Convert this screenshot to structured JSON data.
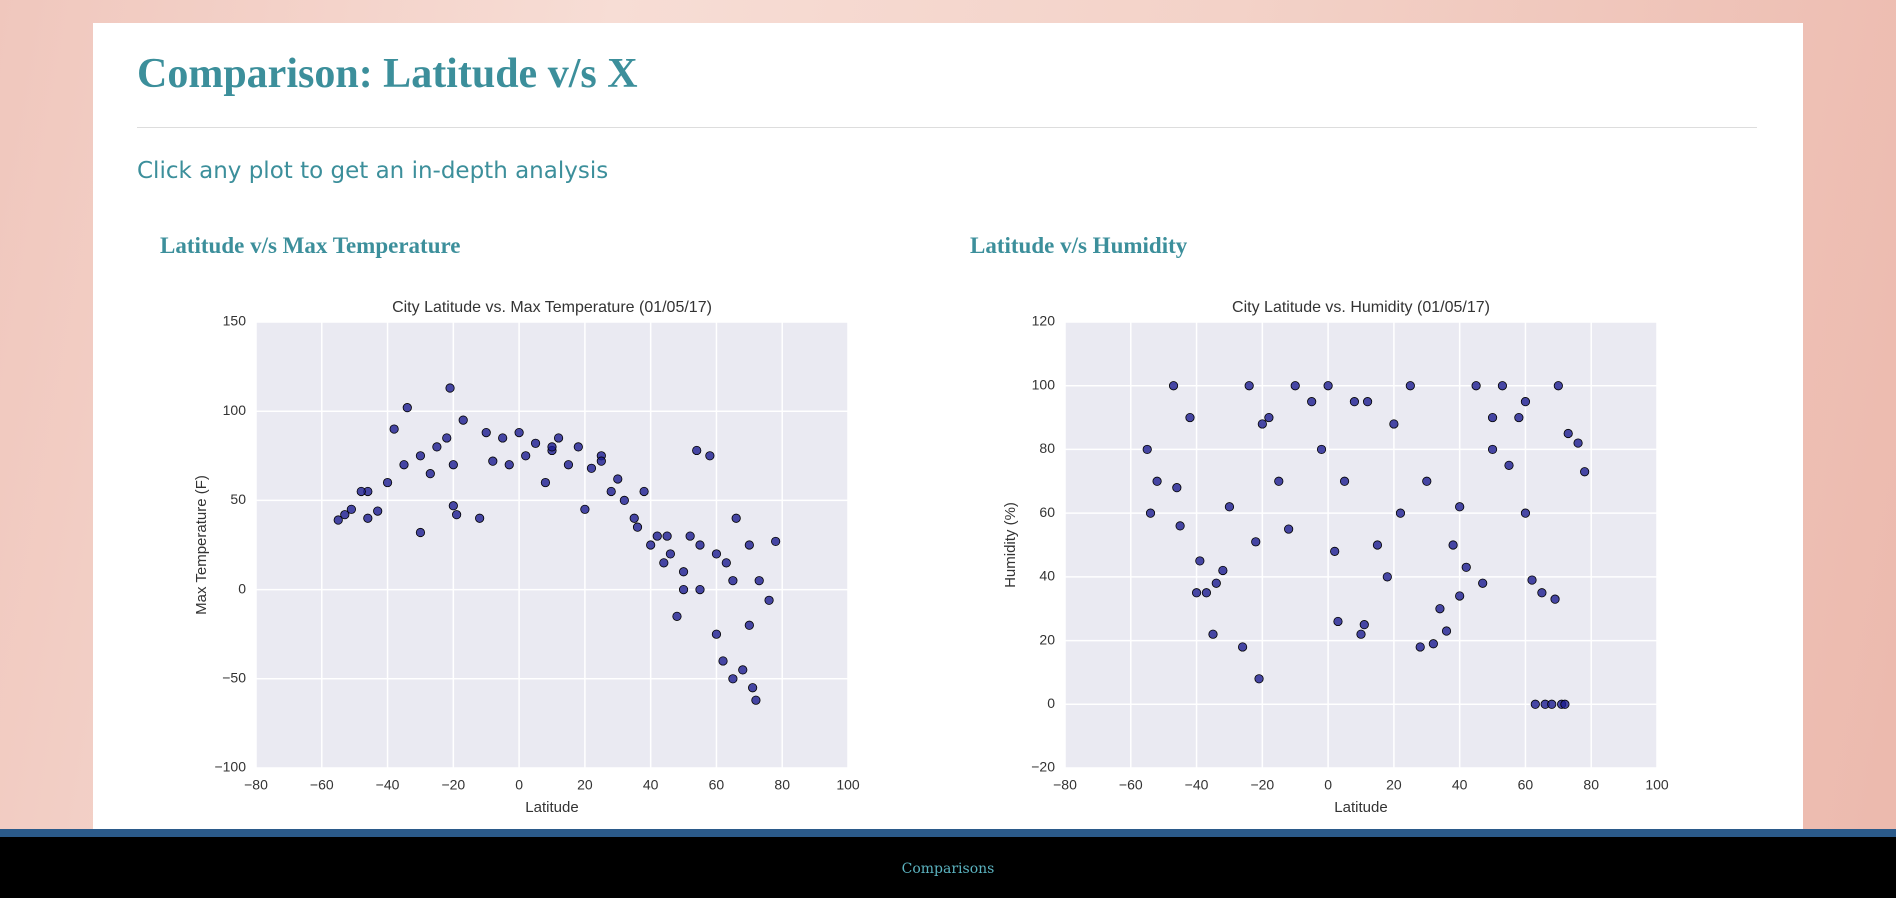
{
  "header": {
    "title": "Comparison: Latitude v/s X",
    "subtitle": "Click any plot to get an in-depth analysis"
  },
  "plots": [
    {
      "heading": "Latitude v/s Max Temperature",
      "chart_data": {
        "type": "scatter",
        "title": "City Latitude vs. Max Temperature (01/05/17)",
        "xlabel": "Latitude",
        "ylabel": "Max Temperature (F)",
        "color": "#1c1c8e",
        "x": [
          -55,
          -53,
          -51,
          -46,
          -46,
          -43,
          -40,
          -38,
          -35,
          -34,
          -30,
          -30,
          -27,
          -25,
          -22,
          -21,
          -20,
          -19,
          -17,
          -12,
          -10,
          -8,
          -5,
          -3,
          0,
          2,
          5,
          8,
          10,
          12,
          15,
          18,
          20,
          22,
          25,
          28,
          30,
          32,
          35,
          38,
          40,
          42,
          44,
          46,
          48,
          50,
          52,
          54,
          55,
          58,
          60,
          62,
          63,
          65,
          66,
          68,
          70,
          71,
          72,
          73,
          76,
          78,
          60,
          65,
          70,
          36,
          45,
          55,
          50,
          -48,
          -20,
          10,
          25
        ],
        "y": [
          39,
          42,
          45,
          55,
          40,
          44,
          60,
          90,
          70,
          102,
          32,
          75,
          65,
          80,
          85,
          113,
          47,
          42,
          95,
          40,
          88,
          72,
          85,
          70,
          88,
          75,
          82,
          60,
          78,
          85,
          70,
          80,
          45,
          68,
          75,
          55,
          62,
          50,
          40,
          55,
          25,
          30,
          15,
          20,
          -15,
          10,
          30,
          78,
          0,
          75,
          -25,
          -40,
          15,
          -50,
          40,
          -45,
          -20,
          -55,
          -62,
          5,
          -6,
          27,
          20,
          5,
          25,
          35,
          30,
          25,
          0,
          55,
          70,
          80,
          72
        ],
        "xlim": [
          -80,
          100
        ],
        "ylim": [
          -100,
          150
        ],
        "xticks": [
          {
            "value": -80,
            "label": "−80"
          },
          {
            "value": -60,
            "label": "−60"
          },
          {
            "value": -40,
            "label": "−40"
          },
          {
            "value": -20,
            "label": "−20"
          },
          0,
          20,
          40,
          60,
          80,
          100
        ],
        "yticks": [
          {
            "value": -100,
            "label": "−100"
          },
          {
            "value": -50,
            "label": "−50"
          },
          0,
          50,
          100,
          150
        ],
        "grid": true
      }
    },
    {
      "heading": "Latitude v/s Humidity",
      "chart_data": {
        "type": "scatter",
        "title": "City Latitude vs. Humidity (01/05/17)",
        "xlabel": "Latitude",
        "ylabel": "Humidity (%)",
        "color": "#1c1c8e",
        "x": [
          -55,
          -54,
          -52,
          -47,
          -46,
          -45,
          -42,
          -40,
          -39,
          -37,
          -35,
          -34,
          -32,
          -30,
          -26,
          -24,
          -22,
          -21,
          -18,
          -15,
          -12,
          -10,
          -5,
          -2,
          0,
          2,
          3,
          5,
          8,
          10,
          11,
          15,
          18,
          20,
          22,
          25,
          28,
          30,
          32,
          34,
          36,
          38,
          40,
          42,
          45,
          47,
          50,
          53,
          55,
          58,
          60,
          62,
          63,
          65,
          66,
          68,
          69,
          70,
          71,
          72,
          73,
          76,
          78,
          -20,
          12,
          40,
          50,
          60
        ],
        "y": [
          80,
          60,
          70,
          100,
          68,
          56,
          90,
          35,
          45,
          35,
          22,
          38,
          42,
          62,
          18,
          100,
          51,
          8,
          90,
          70,
          55,
          100,
          95,
          80,
          100,
          48,
          26,
          70,
          95,
          22,
          25,
          50,
          40,
          88,
          60,
          100,
          18,
          70,
          19,
          30,
          23,
          50,
          34,
          43,
          100,
          38,
          80,
          100,
          75,
          90,
          60,
          39,
          0,
          35,
          0,
          0,
          33,
          100,
          0,
          0,
          85,
          82,
          73,
          88,
          95,
          62,
          90,
          95
        ],
        "xlim": [
          -80,
          100
        ],
        "ylim": [
          -20,
          120
        ],
        "xticks": [
          {
            "value": -80,
            "label": "−80"
          },
          {
            "value": -60,
            "label": "−60"
          },
          {
            "value": -40,
            "label": "−40"
          },
          {
            "value": -20,
            "label": "−20"
          },
          0,
          20,
          40,
          60,
          80,
          100
        ],
        "yticks": [
          {
            "value": -20,
            "label": "−20"
          },
          0,
          20,
          40,
          60,
          80,
          100,
          120
        ],
        "grid": true
      }
    }
  ],
  "footer": {
    "link": "Comparisons"
  }
}
